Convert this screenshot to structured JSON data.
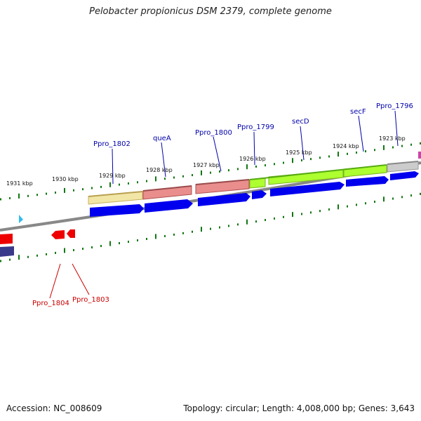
{
  "title": "Pelobacter propionicus DSM 2379, complete genome",
  "footer": {
    "accession": "Accession: NC_008609",
    "summary": "Topology: circular; Length: 4,008,000 bp; Genes: 3,643"
  },
  "scale_labels": [
    "1931 kbp",
    "1930 kbp",
    "1929 kbp",
    "1928 kbp",
    "1927 kbp",
    "1926 kbp",
    "1925 kbp",
    "1924 kbp",
    "1923 kbp"
  ],
  "gene_labels_top": [
    "Ppro_1802",
    "queA",
    "Ppro_1800",
    "Ppro_1799",
    "secD",
    "secF",
    "Ppro_1796"
  ],
  "gene_labels_bottom": [
    "Ppro_1804",
    "Ppro_1803"
  ],
  "colors": {
    "label_top": "#0000aa",
    "label_bottom": "#cc0000",
    "cds": "#0000ee",
    "backbone": "#888888",
    "tick": "#117711",
    "minus_gene": "#ee0000"
  }
}
